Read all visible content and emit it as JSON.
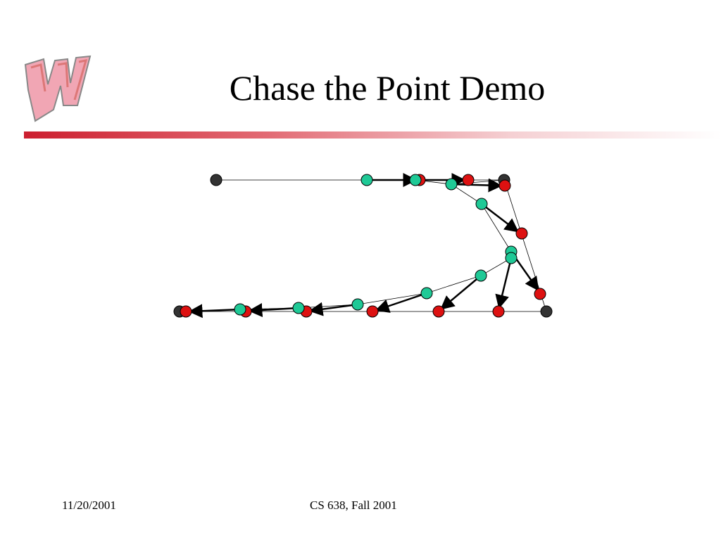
{
  "header": {
    "title": "Chase the Point Demo"
  },
  "footer": {
    "date": "11/20/2001",
    "course": "CS 638, Fall 2001"
  }
}
